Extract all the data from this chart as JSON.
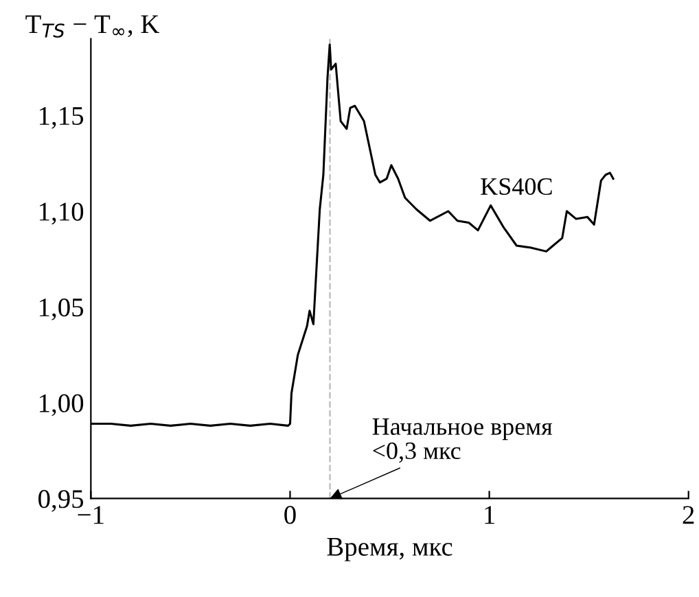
{
  "chart_data": {
    "type": "line",
    "xlabel": "Время, мкс",
    "ylabel": "T$_{TS}$ − T$_{∞}$, K",
    "xlim": [
      -1,
      2
    ],
    "ylim": [
      0.95,
      1.19
    ],
    "xticks": [
      {
        "value": -1,
        "label": "−1"
      },
      0,
      1,
      2
    ],
    "yticks": [
      {
        "value": 0.95,
        "label": "0,95"
      },
      {
        "value": 1.0,
        "label": "1,00"
      },
      {
        "value": 1.05,
        "label": "1,05"
      },
      {
        "value": 1.1,
        "label": "1,10"
      },
      {
        "value": 1.15,
        "label": "1,15"
      }
    ],
    "grid": false,
    "legend": false,
    "marker": "none",
    "line_style": "solid",
    "series": [
      {
        "name": "KS40C",
        "color": "#000000",
        "x": [
          -1.0,
          -0.9,
          -0.8,
          -0.7,
          -0.6,
          -0.5,
          -0.4,
          -0.3,
          -0.2,
          -0.1,
          -0.01,
          0.0,
          0.007,
          0.039,
          0.085,
          0.098,
          0.117,
          0.149,
          0.167,
          0.188,
          0.199,
          0.206,
          0.229,
          0.254,
          0.284,
          0.302,
          0.325,
          0.371,
          0.428,
          0.451,
          0.485,
          0.508,
          0.542,
          0.577,
          0.634,
          0.703,
          0.794,
          0.84,
          0.897,
          0.943,
          1.007,
          1.069,
          1.137,
          1.206,
          1.286,
          1.32,
          1.366,
          1.389,
          1.435,
          1.492,
          1.526,
          1.561,
          1.584,
          1.606,
          1.622
        ],
        "values": [
          0.989,
          0.989,
          0.988,
          0.989,
          0.988,
          0.989,
          0.988,
          0.989,
          0.988,
          0.989,
          0.988,
          0.989,
          1.005,
          1.025,
          1.04,
          1.048,
          1.041,
          1.101,
          1.119,
          1.17,
          1.187,
          1.174,
          1.177,
          1.147,
          1.143,
          1.154,
          1.155,
          1.147,
          1.119,
          1.115,
          1.117,
          1.124,
          1.117,
          1.107,
          1.101,
          1.095,
          1.1,
          1.095,
          1.094,
          1.09,
          1.103,
          1.092,
          1.082,
          1.081,
          1.079,
          1.082,
          1.086,
          1.1,
          1.096,
          1.097,
          1.093,
          1.116,
          1.119,
          1.12,
          1.117
        ]
      }
    ],
    "ref_lines": [
      {
        "axis": "x",
        "value": 0.2,
        "color": "#c0c0c0",
        "line_style": "dashed"
      }
    ],
    "annotations": [
      {
        "text": "Начальное время\n<0,3 мкс",
        "x": 0.2,
        "y": 0.95
      }
    ]
  }
}
